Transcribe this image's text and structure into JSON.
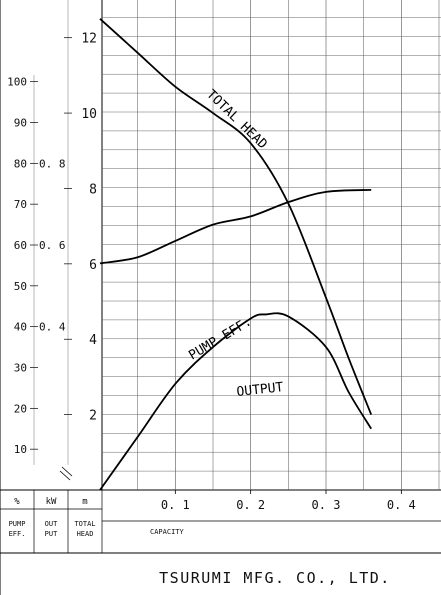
{
  "chart_data": {
    "type": "line",
    "company": "TSURUMI MFG.  CO., LTD.",
    "x_axis": {
      "label": "CAPACITY",
      "ticks": [
        "0. 1",
        "0. 2",
        "0. 3",
        "0. 4"
      ],
      "range": [
        0,
        0.45
      ]
    },
    "left_axes": {
      "pump_eff": {
        "header": "%",
        "caption": [
          "PUMP",
          "EFF."
        ],
        "ticks": [
          "10",
          "20",
          "30",
          "40",
          "50",
          "60",
          "70",
          "80",
          "90",
          "100"
        ],
        "range": [
          0,
          120
        ]
      },
      "output": {
        "header": "kW",
        "caption": [
          "OUT",
          "PUT"
        ],
        "ticks": [
          "0. 4",
          "0. 6",
          "0. 8"
        ],
        "range": [
          0,
          1.2
        ]
      },
      "total_head": {
        "header": "m",
        "caption": [
          "TOTAL",
          "HEAD"
        ],
        "ticks": [
          "2",
          "4",
          "6",
          "8",
          "10",
          "12"
        ],
        "range": [
          0,
          13
        ]
      }
    },
    "series": [
      {
        "name": "TOTAL HEAD",
        "axis": "total_head",
        "x": [
          0,
          0.05,
          0.1,
          0.15,
          0.2,
          0.25,
          0.3,
          0.33,
          0.36
        ],
        "y": [
          12.5,
          11.6,
          10.7,
          10.0,
          9.2,
          7.6,
          5.1,
          3.5,
          2.0
        ]
      },
      {
        "name": "PUMP EFF.",
        "axis": "pump_eff",
        "x": [
          0,
          0.05,
          0.1,
          0.15,
          0.2,
          0.22,
          0.25,
          0.3,
          0.33,
          0.36
        ],
        "y": [
          0,
          13,
          26,
          35,
          42,
          43,
          42.5,
          35,
          24,
          15
        ]
      },
      {
        "name": "OUTPUT",
        "axis": "output",
        "x": [
          0,
          0.05,
          0.1,
          0.15,
          0.2,
          0.25,
          0.3,
          0.36
        ],
        "y": [
          0.555,
          0.57,
          0.61,
          0.65,
          0.67,
          0.705,
          0.73,
          0.735
        ]
      }
    ],
    "grid": true
  }
}
